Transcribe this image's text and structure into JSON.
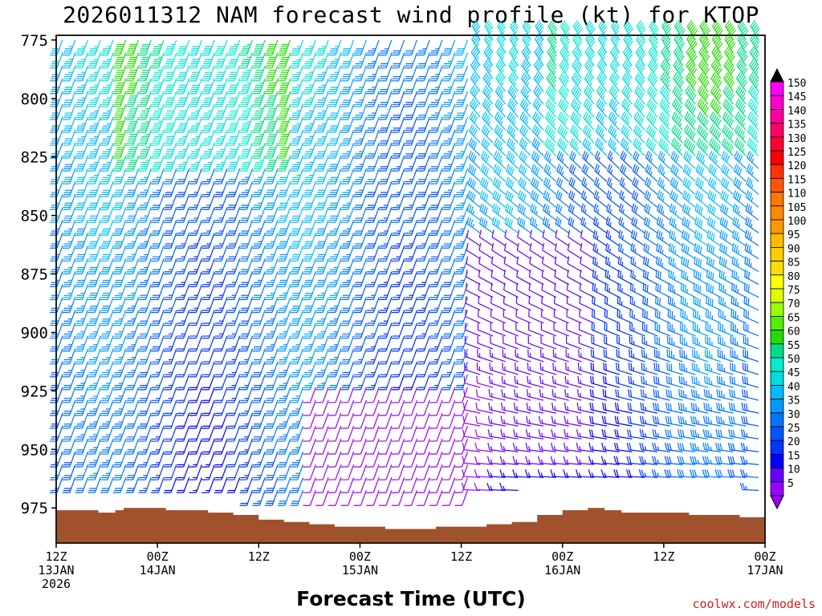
{
  "chart_data": {
    "type": "wind-barb-profile",
    "title": "2026011312 NAM forecast wind profile (kt) for KTOP",
    "xlabel": "Forecast Time (UTC)",
    "ylabel": "",
    "credit": "coolwx.com/models",
    "y_axis": {
      "ticks": [
        775,
        800,
        825,
        850,
        875,
        900,
        925,
        950,
        975
      ],
      "range": [
        773,
        990
      ],
      "unit": "hPa"
    },
    "x_axis": {
      "range_hours": [
        0,
        84
      ],
      "ticks": [
        {
          "hour": 0,
          "lines": [
            "12Z",
            "13JAN",
            "2026"
          ]
        },
        {
          "hour": 12,
          "lines": [
            "00Z",
            "14JAN"
          ]
        },
        {
          "hour": 24,
          "lines": [
            "12Z"
          ]
        },
        {
          "hour": 36,
          "lines": [
            "00Z",
            "15JAN"
          ]
        },
        {
          "hour": 48,
          "lines": [
            "12Z"
          ]
        },
        {
          "hour": 60,
          "lines": [
            "00Z",
            "16JAN"
          ]
        },
        {
          "hour": 72,
          "lines": [
            "12Z"
          ]
        },
        {
          "hour": 84,
          "lines": [
            "00Z",
            "17JAN"
          ]
        }
      ]
    },
    "colorbar": {
      "labels": [
        150,
        145,
        140,
        135,
        130,
        125,
        120,
        115,
        110,
        105,
        100,
        95,
        90,
        85,
        80,
        75,
        70,
        65,
        60,
        55,
        50,
        45,
        40,
        35,
        30,
        25,
        20,
        15,
        10,
        5
      ],
      "colors": [
        "#ff00ff",
        "#ff00cc",
        "#ff0099",
        "#ff0066",
        "#ff0033",
        "#ff0000",
        "#ff3300",
        "#ff5500",
        "#ff7700",
        "#ff8800",
        "#ff9900",
        "#ffbb00",
        "#ffcc00",
        "#ffdd00",
        "#ffff00",
        "#ddff00",
        "#99ff00",
        "#55ee00",
        "#22dd00",
        "#00dd88",
        "#00eecc",
        "#00dddd",
        "#00bbff",
        "#0099ff",
        "#0077ff",
        "#0055ff",
        "#0033ff",
        "#0000ff",
        "#6600ff",
        "#9900ff"
      ],
      "top_arrow_color": "#000000",
      "bottom_arrow_color": "#9900ff"
    },
    "terrain": {
      "color": "#a0522d",
      "surface_pressure_by_hour": [
        [
          0,
          976
        ],
        [
          2,
          976
        ],
        [
          5,
          977
        ],
        [
          7,
          976
        ],
        [
          8,
          975
        ],
        [
          11,
          975
        ],
        [
          13,
          976
        ],
        [
          15,
          976
        ],
        [
          18,
          977
        ],
        [
          21,
          978
        ],
        [
          24,
          980
        ],
        [
          27,
          981
        ],
        [
          30,
          982
        ],
        [
          33,
          983
        ],
        [
          36,
          983
        ],
        [
          39,
          984
        ],
        [
          42,
          984
        ],
        [
          45,
          983
        ],
        [
          48,
          983
        ],
        [
          51,
          982
        ],
        [
          54,
          981
        ],
        [
          57,
          978
        ],
        [
          60,
          976
        ],
        [
          63,
          975
        ],
        [
          65,
          976
        ],
        [
          67,
          977
        ],
        [
          72,
          977
        ],
        [
          75,
          978
        ],
        [
          78,
          978
        ],
        [
          81,
          979
        ],
        [
          84,
          980
        ]
      ]
    }
  }
}
